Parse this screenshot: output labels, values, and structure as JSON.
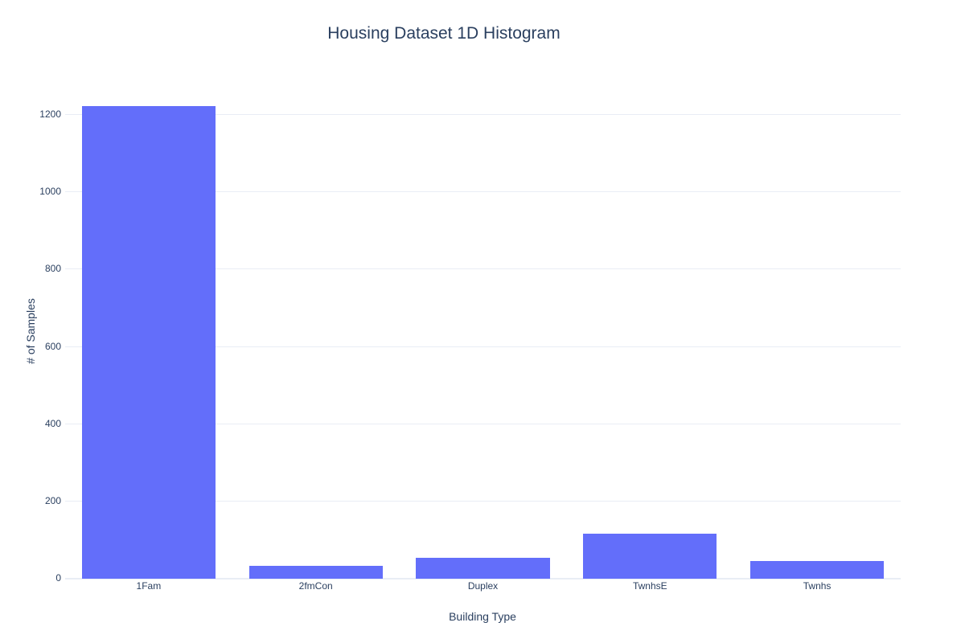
{
  "chart_data": {
    "type": "bar",
    "title": "Housing Dataset 1D Histogram",
    "xlabel": "Building Type",
    "ylabel": "# of Samples",
    "categories": [
      "1Fam",
      "2fmCon",
      "Duplex",
      "TwnhsE",
      "Twnhs"
    ],
    "values": [
      1220,
      31,
      52,
      114,
      43
    ],
    "yticks": [
      0,
      200,
      400,
      600,
      800,
      1000,
      1200
    ],
    "ylim": [
      0,
      1277
    ],
    "grid": true,
    "legend_visible": false,
    "colors": {
      "bar": "#636efa",
      "grid": "#e9edf5",
      "zeroline": "#e9edf5",
      "text": "#2a3f5f",
      "background": "#ffffff"
    }
  }
}
